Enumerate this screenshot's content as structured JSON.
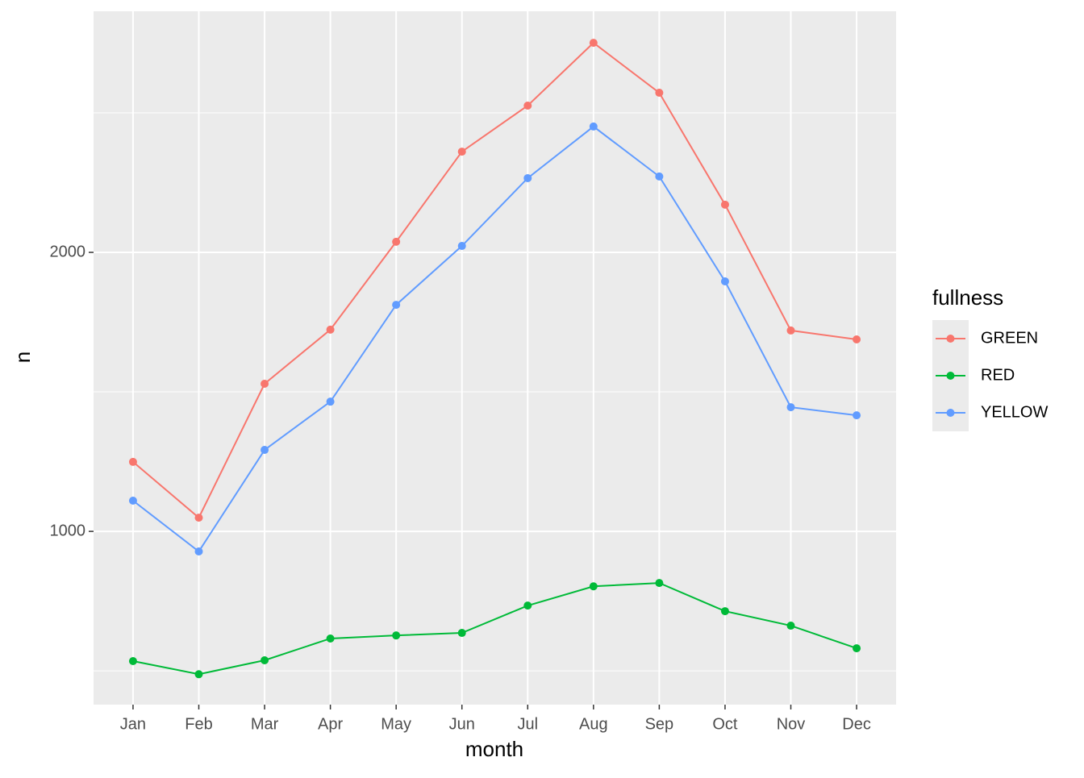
{
  "chart_data": {
    "type": "line",
    "x_label": "month",
    "y_label": "n",
    "categories": [
      "Jan",
      "Feb",
      "Mar",
      "Apr",
      "May",
      "Jun",
      "Jul",
      "Aug",
      "Sep",
      "Oct",
      "Nov",
      "Dec"
    ],
    "series": [
      {
        "name": "GREEN",
        "color": "#F8766D",
        "values": [
          1249,
          1049,
          1529,
          1723,
          2038,
          2361,
          2526,
          2751,
          2572,
          2171,
          1720,
          1688
        ]
      },
      {
        "name": "RED",
        "color": "#00BA38",
        "values": [
          535,
          488,
          538,
          616,
          627,
          636,
          734,
          803,
          815,
          714,
          662,
          581
        ]
      },
      {
        "name": "YELLOW",
        "color": "#619CFF",
        "values": [
          1110,
          928,
          1292,
          1465,
          1812,
          2023,
          2266,
          2451,
          2272,
          1896,
          1445,
          1416
        ]
      }
    ],
    "legend_title": "fullness",
    "ylim": [
      379,
      2864
    ],
    "yticks": [
      1000,
      2000
    ],
    "yminor": [
      500,
      1500,
      2500
    ],
    "grid": true
  }
}
